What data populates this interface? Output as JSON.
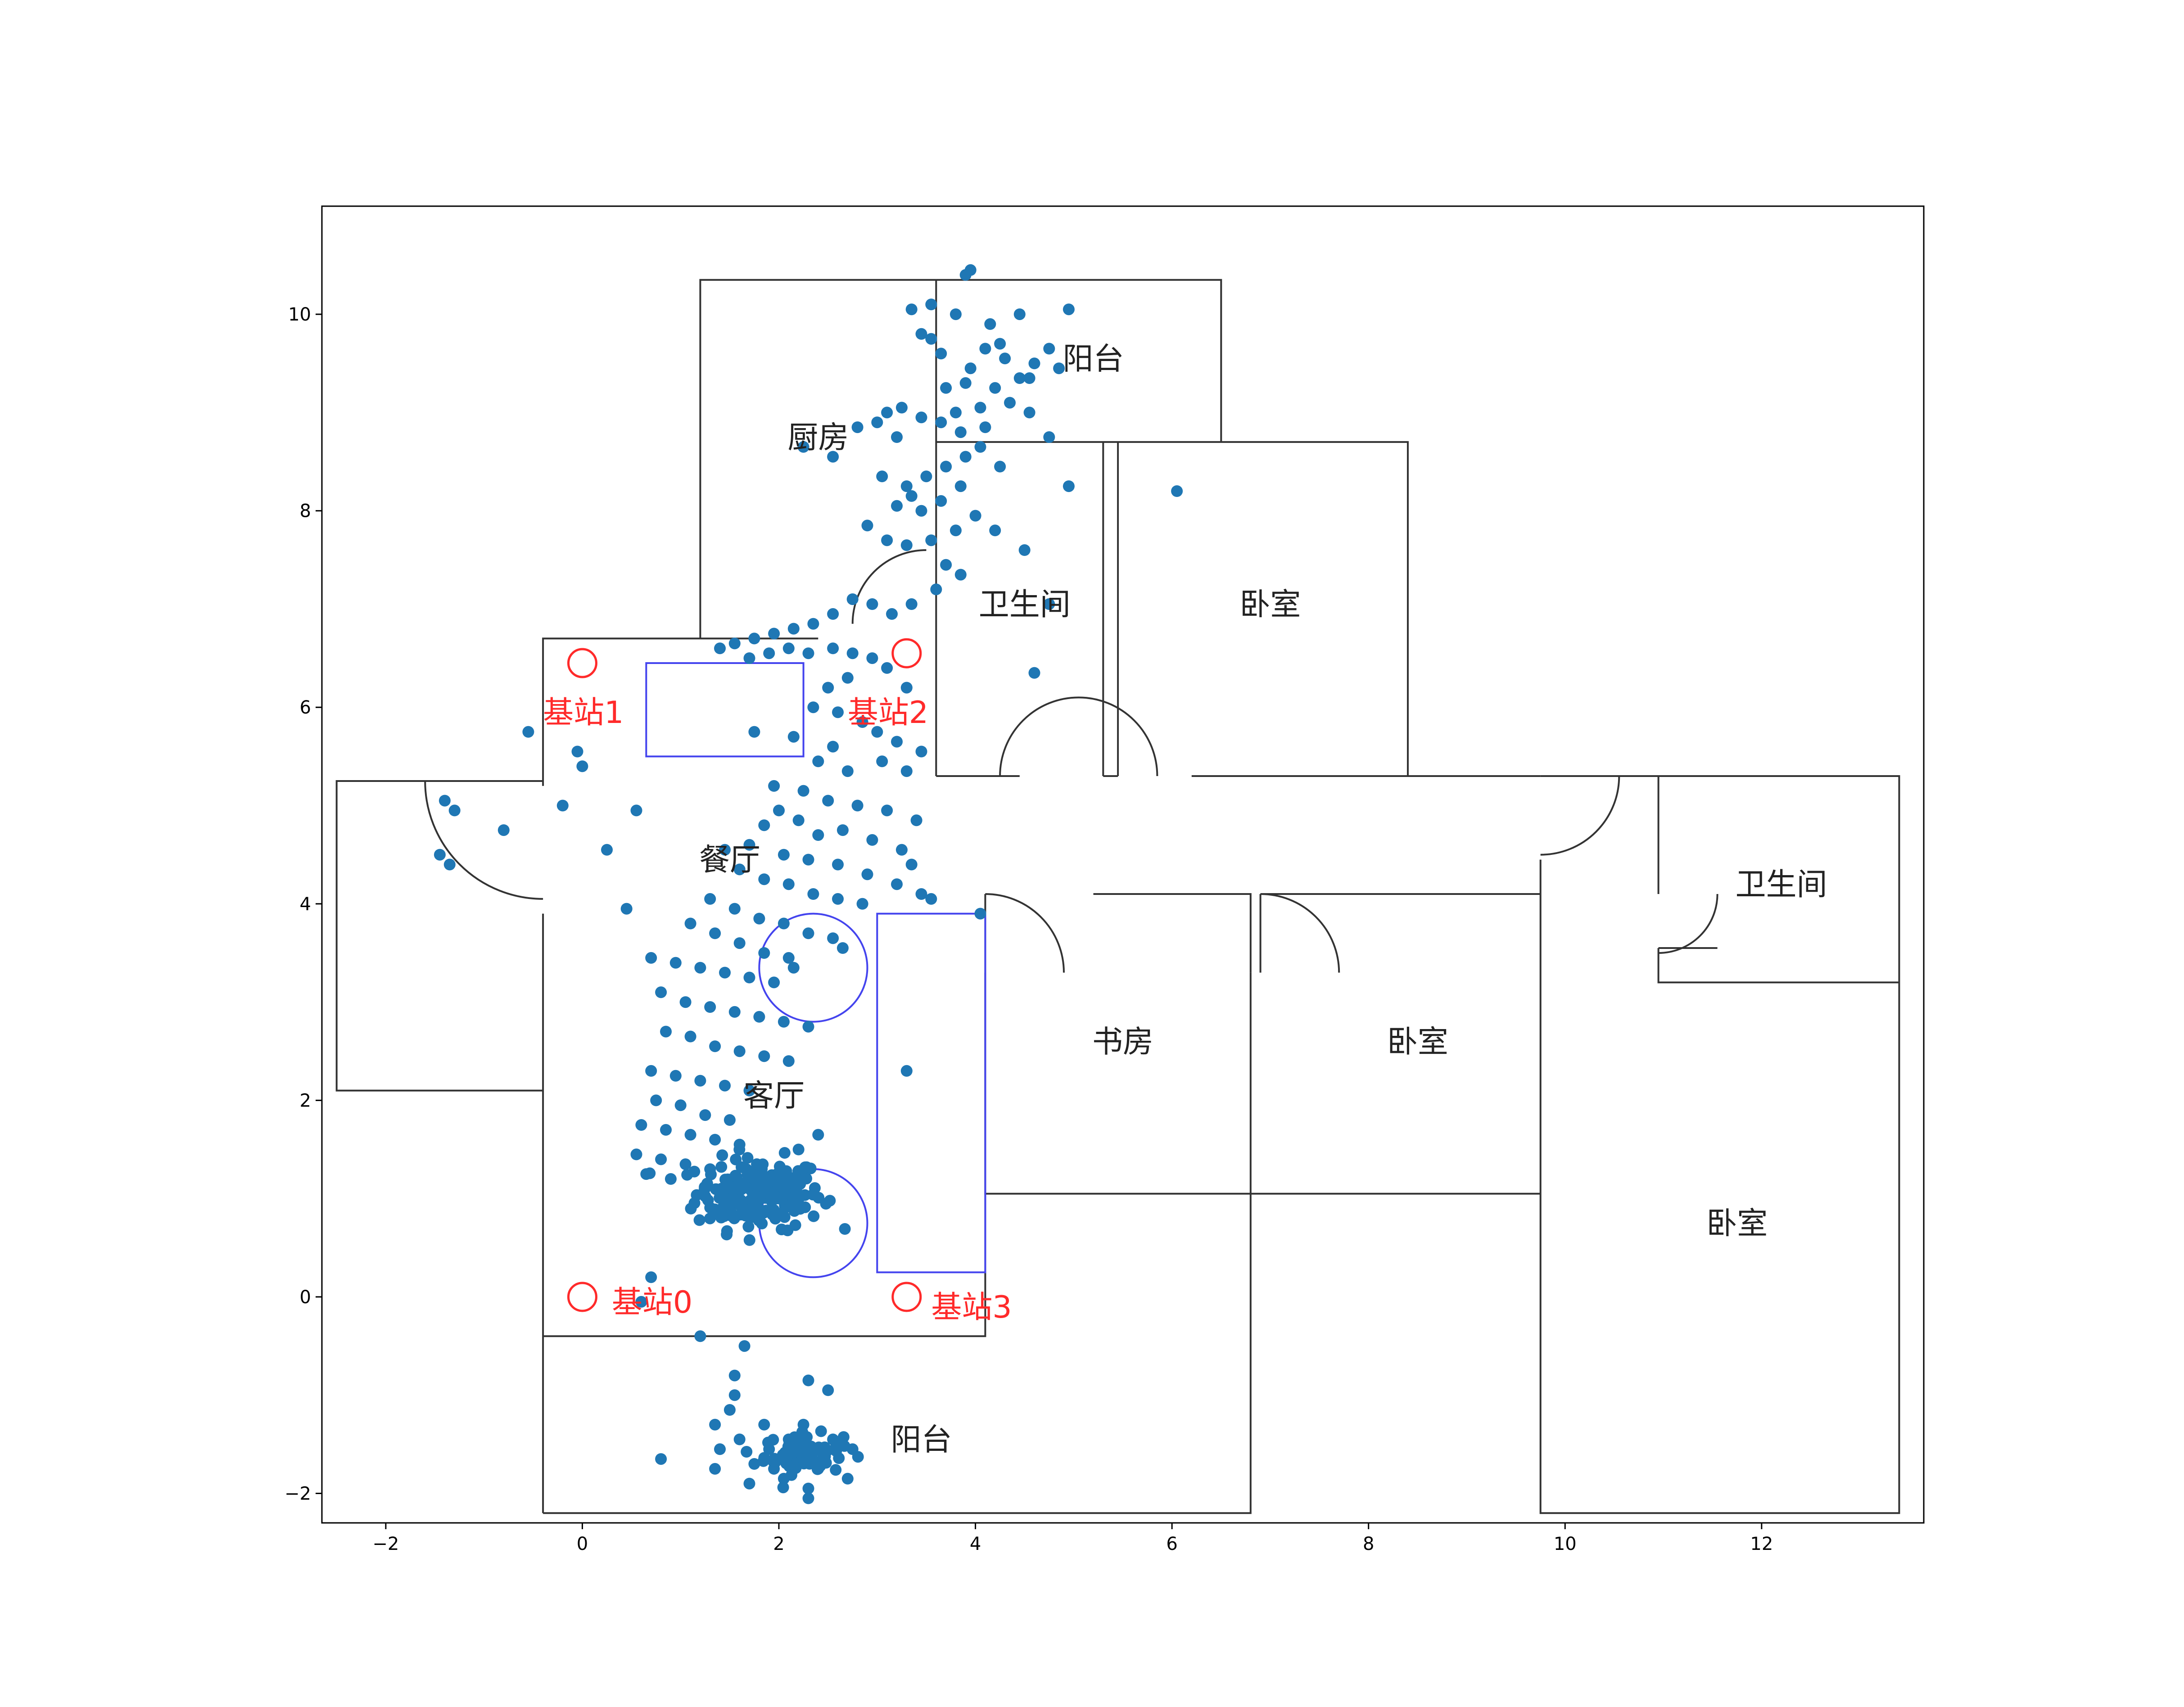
{
  "chart_data": {
    "type": "scatter",
    "title": "",
    "xlabel": "",
    "ylabel": "",
    "xlim": [
      -2.65,
      13.65
    ],
    "ylim": [
      -2.3,
      11.1
    ],
    "xticks": [
      -2,
      0,
      2,
      4,
      6,
      8,
      10,
      12
    ],
    "yticks": [
      -2,
      0,
      2,
      4,
      6,
      8,
      10
    ],
    "grid": false,
    "colors": {
      "points": "#1f77b4",
      "walls": "#333333",
      "furniture": "#4444ee",
      "stations": "#ff2a2a"
    },
    "room_labels": [
      {
        "text": "阳台",
        "x": 5.2,
        "y": 9.55
      },
      {
        "text": "厨房",
        "x": 2.4,
        "y": 8.75
      },
      {
        "text": "卫生间",
        "x": 4.5,
        "y": 7.05
      },
      {
        "text": "卧室",
        "x": 7.0,
        "y": 7.05
      },
      {
        "text": "餐厅",
        "x": 1.5,
        "y": 4.45
      },
      {
        "text": "卫生间",
        "x": 12.2,
        "y": 4.2
      },
      {
        "text": "书房",
        "x": 5.5,
        "y": 2.6
      },
      {
        "text": "卧室",
        "x": 8.5,
        "y": 2.6
      },
      {
        "text": "客厅",
        "x": 1.95,
        "y": 2.05
      },
      {
        "text": "卧室",
        "x": 11.75,
        "y": 0.75
      },
      {
        "text": "阳台",
        "x": 3.45,
        "y": -1.45
      }
    ],
    "stations": [
      {
        "label": "基站0",
        "x": 0.0,
        "y": 0.0,
        "label_x": 0.3,
        "label_y": -0.05
      },
      {
        "label": "基站1",
        "x": 0.0,
        "y": 6.45,
        "label_x": -0.4,
        "label_y": 5.95
      },
      {
        "label": "基站2",
        "x": 3.3,
        "y": 6.55,
        "label_x": 2.7,
        "label_y": 5.95
      },
      {
        "label": "基站3",
        "x": 3.3,
        "y": 0.0,
        "label_x": 3.55,
        "label_y": -0.1
      }
    ],
    "walls": [
      [
        [
          -0.4,
          -2.2
        ],
        [
          6.8,
          -2.2
        ],
        [
          6.8,
          1.05
        ]
      ],
      [
        [
          -0.4,
          -2.2
        ],
        [
          -0.4,
          3.9
        ]
      ],
      [
        [
          -0.4,
          -0.4
        ],
        [
          4.1,
          -0.4
        ],
        [
          4.1,
          4.1
        ]
      ],
      [
        [
          -0.4,
          5.2
        ],
        [
          -0.4,
          6.7
        ],
        [
          2.4,
          6.7
        ]
      ],
      [
        [
          -0.4,
          5.25
        ],
        [
          -2.5,
          5.25
        ],
        [
          -2.5,
          2.1
        ],
        [
          -0.4,
          2.1
        ]
      ],
      [
        [
          1.2,
          6.7
        ],
        [
          1.2,
          10.35
        ],
        [
          6.5,
          10.35
        ],
        [
          6.5,
          8.7
        ]
      ],
      [
        [
          3.6,
          5.3
        ],
        [
          3.6,
          10.35
        ]
      ],
      [
        [
          3.6,
          8.7
        ],
        [
          8.4,
          8.7
        ],
        [
          8.4,
          5.3
        ]
      ],
      [
        [
          5.3,
          5.3
        ],
        [
          5.3,
          8.7
        ]
      ],
      [
        [
          5.45,
          5.3
        ],
        [
          5.45,
          8.7
        ]
      ],
      [
        [
          3.6,
          5.3
        ],
        [
          4.45,
          5.3
        ]
      ],
      [
        [
          5.3,
          5.3
        ],
        [
          5.45,
          5.3
        ]
      ],
      [
        [
          6.2,
          5.3
        ],
        [
          9.75,
          5.3
        ]
      ],
      [
        [
          4.1,
          3.3
        ],
        [
          4.1,
          1.05
        ],
        [
          9.75,
          1.05
        ]
      ],
      [
        [
          5.2,
          4.1
        ],
        [
          6.8,
          4.1
        ],
        [
          6.8,
          3.3
        ]
      ],
      [
        [
          6.9,
          4.1
        ],
        [
          9.75,
          4.1
        ]
      ],
      [
        [
          6.9,
          4.1
        ],
        [
          6.9,
          3.3
        ]
      ],
      [
        [
          6.8,
          3.3
        ],
        [
          6.8,
          1.05
        ]
      ],
      [
        [
          9.75,
          5.3
        ],
        [
          13.4,
          5.3
        ],
        [
          13.4,
          -2.2
        ],
        [
          9.75,
          -2.2
        ],
        [
          9.75,
          4.45
        ]
      ],
      [
        [
          10.95,
          5.3
        ],
        [
          10.95,
          4.1
        ]
      ],
      [
        [
          10.95,
          3.55
        ],
        [
          10.95,
          3.2
        ],
        [
          13.4,
          3.2
        ]
      ],
      [
        [
          10.95,
          3.55
        ],
        [
          11.55,
          3.55
        ]
      ]
    ],
    "door_arcs": [
      {
        "cx": 3.5,
        "cy": 6.85,
        "r": 0.75,
        "a0": 90,
        "a1": 180,
        "closed": false
      },
      {
        "cx": 5.05,
        "cy": 5.3,
        "r": 0.8,
        "a0": 0,
        "a1": 180,
        "closed": false
      },
      {
        "cx": -0.4,
        "cy": 5.25,
        "r": 1.2,
        "a0": 180,
        "a1": 270,
        "closed": false
      },
      {
        "cx": 4.1,
        "cy": 3.3,
        "r": 0.8,
        "a0": 0,
        "a1": 90,
        "closed": false
      },
      {
        "cx": 6.9,
        "cy": 3.3,
        "r": 0.8,
        "a0": 0,
        "a1": 90,
        "closed": false
      },
      {
        "cx": 9.75,
        "cy": 5.3,
        "r": 0.8,
        "a0": 270,
        "a1": 360,
        "closed": false
      },
      {
        "cx": 10.95,
        "cy": 4.1,
        "r": 0.6,
        "a0": 270,
        "a1": 360,
        "closed": false
      }
    ],
    "furniture_rects": [
      {
        "x0": 0.65,
        "y0": 5.5,
        "x1": 2.25,
        "y1": 6.45
      },
      {
        "x0": 3.0,
        "y0": 0.25,
        "x1": 4.1,
        "y1": 3.9
      }
    ],
    "furniture_circles": [
      {
        "cx": 2.35,
        "cy": 3.35,
        "r": 0.55
      },
      {
        "cx": 2.35,
        "cy": 0.75,
        "r": 0.55
      }
    ],
    "points": [
      [
        3.95,
        10.45
      ],
      [
        3.9,
        10.4
      ],
      [
        3.35,
        10.05
      ],
      [
        3.55,
        10.1
      ],
      [
        3.8,
        10.0
      ],
      [
        4.15,
        9.9
      ],
      [
        4.45,
        10.0
      ],
      [
        4.25,
        9.7
      ],
      [
        3.55,
        9.75
      ],
      [
        4.95,
        10.05
      ],
      [
        3.65,
        9.6
      ],
      [
        3.95,
        9.45
      ],
      [
        4.1,
        9.65
      ],
      [
        4.3,
        9.55
      ],
      [
        4.45,
        9.35
      ],
      [
        4.6,
        9.5
      ],
      [
        4.85,
        9.45
      ],
      [
        4.2,
        9.25
      ],
      [
        3.9,
        9.3
      ],
      [
        3.7,
        9.25
      ],
      [
        4.05,
        9.05
      ],
      [
        4.35,
        9.1
      ],
      [
        4.55,
        9.0
      ],
      [
        3.8,
        9.0
      ],
      [
        4.1,
        8.85
      ],
      [
        3.85,
        8.8
      ],
      [
        3.65,
        8.9
      ],
      [
        3.45,
        8.95
      ],
      [
        3.25,
        9.05
      ],
      [
        3.0,
        8.9
      ],
      [
        3.2,
        8.75
      ],
      [
        4.05,
        8.65
      ],
      [
        3.9,
        8.55
      ],
      [
        3.7,
        8.45
      ],
      [
        3.5,
        8.35
      ],
      [
        3.3,
        8.25
      ],
      [
        3.05,
        8.35
      ],
      [
        3.2,
        8.05
      ],
      [
        3.45,
        8.0
      ],
      [
        3.65,
        8.1
      ],
      [
        3.85,
        8.25
      ],
      [
        4.25,
        8.45
      ],
      [
        4.0,
        7.95
      ],
      [
        4.2,
        7.8
      ],
      [
        3.8,
        7.8
      ],
      [
        3.55,
        7.7
      ],
      [
        3.3,
        7.65
      ],
      [
        3.1,
        7.7
      ],
      [
        2.9,
        7.85
      ],
      [
        3.7,
        7.45
      ],
      [
        4.5,
        7.6
      ],
      [
        3.85,
        7.35
      ],
      [
        3.6,
        7.2
      ],
      [
        3.35,
        7.05
      ],
      [
        3.15,
        6.95
      ],
      [
        2.95,
        7.05
      ],
      [
        2.75,
        7.1
      ],
      [
        2.55,
        6.95
      ],
      [
        2.35,
        6.85
      ],
      [
        2.15,
        6.8
      ],
      [
        1.95,
        6.75
      ],
      [
        1.75,
        6.7
      ],
      [
        1.55,
        6.65
      ],
      [
        1.4,
        6.6
      ],
      [
        1.7,
        6.5
      ],
      [
        1.9,
        6.55
      ],
      [
        2.1,
        6.6
      ],
      [
        2.3,
        6.55
      ],
      [
        2.55,
        6.6
      ],
      [
        2.75,
        6.55
      ],
      [
        2.95,
        6.5
      ],
      [
        3.1,
        6.4
      ],
      [
        2.7,
        6.3
      ],
      [
        2.5,
        6.2
      ],
      [
        3.3,
        6.2
      ],
      [
        2.35,
        6.0
      ],
      [
        2.6,
        5.95
      ],
      [
        2.85,
        5.85
      ],
      [
        3.0,
        5.75
      ],
      [
        3.2,
        5.65
      ],
      [
        3.45,
        5.55
      ],
      [
        2.15,
        5.7
      ],
      [
        2.55,
        5.6
      ],
      [
        1.75,
        5.75
      ],
      [
        2.4,
        5.45
      ],
      [
        2.7,
        5.35
      ],
      [
        3.05,
        5.45
      ],
      [
        3.3,
        5.35
      ],
      [
        1.95,
        5.2
      ],
      [
        2.25,
        5.15
      ],
      [
        2.5,
        5.05
      ],
      [
        2.8,
        5.0
      ],
      [
        3.1,
        4.95
      ],
      [
        3.4,
        4.85
      ],
      [
        2.0,
        4.95
      ],
      [
        1.85,
        4.8
      ],
      [
        2.2,
        4.85
      ],
      [
        2.4,
        4.7
      ],
      [
        2.65,
        4.75
      ],
      [
        2.95,
        4.65
      ],
      [
        3.25,
        4.55
      ],
      [
        1.7,
        4.6
      ],
      [
        1.45,
        4.55
      ],
      [
        2.05,
        4.5
      ],
      [
        2.3,
        4.45
      ],
      [
        2.6,
        4.4
      ],
      [
        2.9,
        4.3
      ],
      [
        3.2,
        4.2
      ],
      [
        3.45,
        4.1
      ],
      [
        1.6,
        4.35
      ],
      [
        1.85,
        4.25
      ],
      [
        2.1,
        4.2
      ],
      [
        2.35,
        4.1
      ],
      [
        2.6,
        4.05
      ],
      [
        2.85,
        4.0
      ],
      [
        1.3,
        4.05
      ],
      [
        1.55,
        3.95
      ],
      [
        1.8,
        3.85
      ],
      [
        2.05,
        3.8
      ],
      [
        2.3,
        3.7
      ],
      [
        2.55,
        3.65
      ],
      [
        1.1,
        3.8
      ],
      [
        1.35,
        3.7
      ],
      [
        1.6,
        3.6
      ],
      [
        1.85,
        3.5
      ],
      [
        2.1,
        3.45
      ],
      [
        0.7,
        3.45
      ],
      [
        0.95,
        3.4
      ],
      [
        1.2,
        3.35
      ],
      [
        1.45,
        3.3
      ],
      [
        1.7,
        3.25
      ],
      [
        1.95,
        3.2
      ],
      [
        2.15,
        3.35
      ],
      [
        0.8,
        3.1
      ],
      [
        1.05,
        3.0
      ],
      [
        1.3,
        2.95
      ],
      [
        1.55,
        2.9
      ],
      [
        1.8,
        2.85
      ],
      [
        2.05,
        2.8
      ],
      [
        2.3,
        2.75
      ],
      [
        0.85,
        2.7
      ],
      [
        1.1,
        2.65
      ],
      [
        1.35,
        2.55
      ],
      [
        1.6,
        2.5
      ],
      [
        1.85,
        2.45
      ],
      [
        2.1,
        2.4
      ],
      [
        0.7,
        2.3
      ],
      [
        0.95,
        2.25
      ],
      [
        1.2,
        2.2
      ],
      [
        1.45,
        2.15
      ],
      [
        1.7,
        2.1
      ],
      [
        0.75,
        2.0
      ],
      [
        1.0,
        1.95
      ],
      [
        1.25,
        1.85
      ],
      [
        1.5,
        1.8
      ],
      [
        0.6,
        1.75
      ],
      [
        0.85,
        1.7
      ],
      [
        1.1,
        1.65
      ],
      [
        1.35,
        1.6
      ],
      [
        1.6,
        1.55
      ],
      [
        0.55,
        1.45
      ],
      [
        0.8,
        1.4
      ],
      [
        1.05,
        1.35
      ],
      [
        1.3,
        1.3
      ],
      [
        0.65,
        1.25
      ],
      [
        0.9,
        1.2
      ],
      [
        2.4,
        1.65
      ],
      [
        2.2,
        1.5
      ],
      [
        0.6,
        -0.05
      ],
      [
        0.7,
        0.2
      ],
      [
        -1.4,
        5.05
      ],
      [
        -1.3,
        4.95
      ],
      [
        -1.45,
        4.5
      ],
      [
        -1.35,
        4.4
      ],
      [
        -0.8,
        4.75
      ],
      [
        -0.55,
        5.75
      ],
      [
        -0.2,
        5.0
      ],
      [
        -0.05,
        5.55
      ],
      [
        0.0,
        5.4
      ],
      [
        0.25,
        4.55
      ],
      [
        0.55,
        4.95
      ],
      [
        0.45,
        3.95
      ],
      [
        3.35,
        4.4
      ],
      [
        3.55,
        4.05
      ],
      [
        4.05,
        3.9
      ],
      [
        3.3,
        2.3
      ],
      [
        2.65,
        3.55
      ],
      [
        4.75,
        7.05
      ],
      [
        4.6,
        6.35
      ],
      [
        6.05,
        8.2
      ],
      [
        4.95,
        8.25
      ],
      [
        4.75,
        8.75
      ],
      [
        4.55,
        9.35
      ],
      [
        4.75,
        9.65
      ],
      [
        3.45,
        9.8
      ],
      [
        3.1,
        9.0
      ],
      [
        2.8,
        8.85
      ],
      [
        2.25,
        8.65
      ],
      [
        2.55,
        8.55
      ],
      [
        3.35,
        8.15
      ],
      [
        1.2,
        -0.4
      ],
      [
        1.65,
        -0.5
      ],
      [
        1.55,
        -0.8
      ],
      [
        2.3,
        -0.85
      ],
      [
        2.5,
        -0.95
      ],
      [
        1.55,
        -1.0
      ],
      [
        1.5,
        -1.15
      ],
      [
        1.35,
        -1.3
      ],
      [
        1.4,
        -1.55
      ],
      [
        1.35,
        -1.75
      ],
      [
        0.8,
        -1.65
      ],
      [
        1.7,
        -1.9
      ],
      [
        2.3,
        -1.95
      ],
      [
        2.3,
        -2.05
      ],
      [
        2.7,
        -1.85
      ],
      [
        2.75,
        -1.55
      ],
      [
        2.25,
        -1.3
      ],
      [
        1.85,
        -1.3
      ],
      [
        1.6,
        -1.45
      ],
      [
        1.9,
        -1.55
      ],
      [
        2.1,
        -1.45
      ],
      [
        2.15,
        -1.65
      ],
      [
        1.95,
        -1.75
      ],
      [
        2.55,
        -1.45
      ],
      [
        2.4,
        -1.75
      ],
      [
        2.05,
        -1.85
      ],
      [
        1.75,
        -1.7
      ],
      [
        2.2,
        -1.55
      ]
    ],
    "clusters": [
      {
        "cx": 1.8,
        "cy": 1.05,
        "sx": 0.32,
        "sy": 0.18,
        "n": 200
      },
      {
        "cx": 2.25,
        "cy": -1.6,
        "sx": 0.2,
        "sy": 0.1,
        "n": 70
      }
    ]
  }
}
